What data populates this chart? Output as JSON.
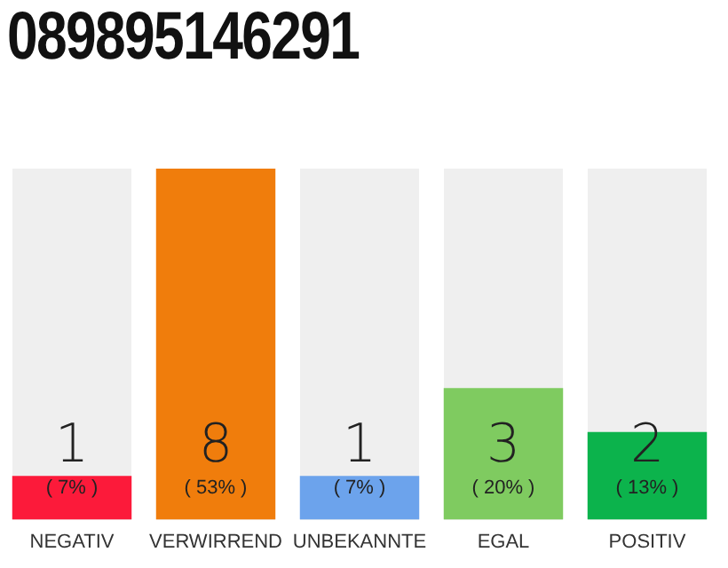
{
  "chart_data": {
    "type": "bar",
    "title": "089895146291",
    "categories": [
      "NEGATIV",
      "VERWIRREND",
      "UNBEKANNTE",
      "EGAL",
      "POSITIV"
    ],
    "values": [
      1,
      8,
      1,
      3,
      2
    ],
    "colors": [
      "#fc1a3a",
      "#f07d0c",
      "#6ca3ec",
      "#7fcb60",
      "#0cb34c"
    ],
    "annotations": [
      "( 7% )",
      "( 53% )",
      "( 7% )",
      "( 20% )",
      "( 13% )"
    ],
    "data_labels": true,
    "tick_labels": "x",
    "grid": false,
    "legend": false
  }
}
